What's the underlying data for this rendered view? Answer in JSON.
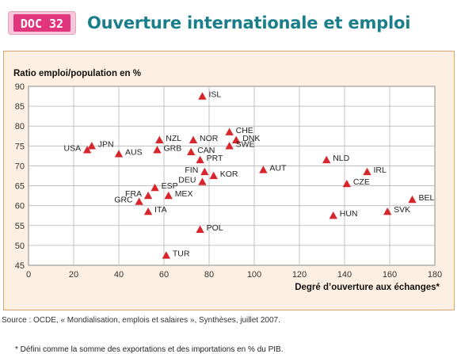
{
  "header": {
    "badge": "DOC 32",
    "title": "Ouverture internationale et emploi"
  },
  "colors": {
    "badge_bg": "#e1357d",
    "title": "#1a7f8a",
    "panel_bg": "#fdf0e2",
    "panel_border": "#d9a46d",
    "marker": "#d7262b"
  },
  "chart_data": {
    "type": "scatter",
    "ylabel": "Ratio emploi/population en %",
    "xlabel": "Degré d’ouverture aux échanges*",
    "xlim": [
      0,
      180
    ],
    "ylim": [
      45,
      90
    ],
    "xticks": [
      "0",
      "20",
      "40",
      "60",
      "80",
      "100",
      "120",
      "140",
      "160",
      "180"
    ],
    "yticks": [
      "45",
      "50",
      "55",
      "60",
      "65",
      "70",
      "75",
      "80",
      "85",
      "90"
    ],
    "grid": true,
    "marker": "triangle",
    "points": [
      {
        "label": "ISL",
        "x": 77,
        "y": 87.5
      },
      {
        "label": "CHE",
        "x": 89,
        "y": 78.5
      },
      {
        "label": "DNK",
        "x": 92,
        "y": 76.5
      },
      {
        "label": "NOR",
        "x": 73,
        "y": 76.5
      },
      {
        "label": "NZL",
        "x": 58,
        "y": 76.5
      },
      {
        "label": "JPN",
        "x": 28,
        "y": 75
      },
      {
        "label": "SWE",
        "x": 89,
        "y": 75
      },
      {
        "label": "USA",
        "x": 26,
        "y": 74
      },
      {
        "label": "GRB",
        "x": 57,
        "y": 74
      },
      {
        "label": "CAN",
        "x": 72,
        "y": 73.5
      },
      {
        "label": "AUS",
        "x": 40,
        "y": 73
      },
      {
        "label": "PRT",
        "x": 76,
        "y": 71.5
      },
      {
        "label": "NLD",
        "x": 132,
        "y": 71.5
      },
      {
        "label": "AUT",
        "x": 104,
        "y": 69
      },
      {
        "label": "FIN",
        "x": 78,
        "y": 68.5
      },
      {
        "label": "IRL",
        "x": 150,
        "y": 68.5
      },
      {
        "label": "KOR",
        "x": 82,
        "y": 67.5
      },
      {
        "label": "DEU",
        "x": 77,
        "y": 66
      },
      {
        "label": "CZE",
        "x": 141,
        "y": 65.5
      },
      {
        "label": "ESP",
        "x": 56,
        "y": 64.5
      },
      {
        "label": "FRA",
        "x": 53,
        "y": 62.5
      },
      {
        "label": "MEX",
        "x": 62,
        "y": 62.5
      },
      {
        "label": "GRC",
        "x": 49,
        "y": 61
      },
      {
        "label": "BEL",
        "x": 170,
        "y": 61.5
      },
      {
        "label": "ITA",
        "x": 53,
        "y": 58.5
      },
      {
        "label": "SVK",
        "x": 159,
        "y": 58.5
      },
      {
        "label": "HUN",
        "x": 135,
        "y": 57.5
      },
      {
        "label": "POL",
        "x": 76,
        "y": 54
      },
      {
        "label": "TUR",
        "x": 61,
        "y": 47.5
      }
    ]
  },
  "footnote": "* Défini comme la somme des exportations et des importations en % du PIB.",
  "source": "Source : OCDE, « Mondialisation, emplois et salaires », Synthèses, juillet 2007."
}
